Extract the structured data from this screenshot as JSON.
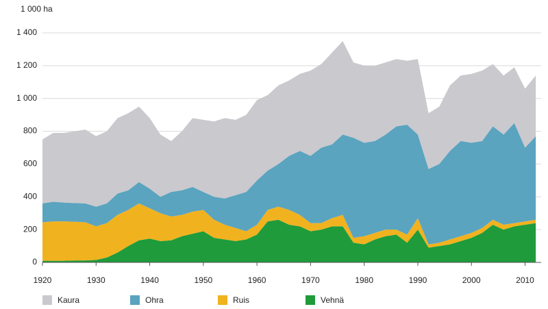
{
  "chart_data": {
    "type": "stacked-area",
    "y_axis_label": "1 000 ha",
    "x": [
      1920,
      1922,
      1924,
      1926,
      1928,
      1930,
      1932,
      1934,
      1936,
      1938,
      1940,
      1942,
      1944,
      1946,
      1948,
      1950,
      1952,
      1954,
      1956,
      1958,
      1960,
      1962,
      1964,
      1966,
      1968,
      1970,
      1972,
      1974,
      1976,
      1978,
      1980,
      1982,
      1984,
      1986,
      1988,
      1990,
      1992,
      1994,
      1996,
      1998,
      2000,
      2002,
      2004,
      2006,
      2008,
      2010,
      2012
    ],
    "series": [
      {
        "name": "Kaura",
        "color": "#c9c9ce",
        "values": [
          390,
          420,
          425,
          438,
          450,
          430,
          440,
          460,
          470,
          460,
          430,
          380,
          310,
          360,
          420,
          440,
          460,
          490,
          460,
          470,
          490,
          460,
          480,
          460,
          470,
          520,
          510,
          560,
          570,
          460,
          470,
          460,
          440,
          410,
          390,
          460,
          340,
          350,
          400,
          400,
          420,
          430,
          380,
          360,
          340,
          360,
          370
        ]
      },
      {
        "name": "Ohra",
        "color": "#5aa4bf",
        "values": [
          115,
          120,
          115,
          114,
          115,
          120,
          120,
          130,
          120,
          130,
          120,
          100,
          150,
          150,
          150,
          110,
          140,
          160,
          200,
          240,
          270,
          240,
          260,
          330,
          390,
          410,
          460,
          450,
          490,
          610,
          570,
          560,
          580,
          630,
          670,
          510,
          460,
          480,
          540,
          580,
          550,
          530,
          570,
          550,
          610,
          450,
          510
        ]
      },
      {
        "name": "Ruis",
        "color": "#f1b21f",
        "values": [
          235,
          240,
          240,
          236,
          233,
          205,
          210,
          230,
          220,
          225,
          185,
          170,
          145,
          130,
          135,
          130,
          110,
          90,
          80,
          50,
          60,
          70,
          80,
          90,
          70,
          50,
          40,
          50,
          70,
          30,
          50,
          40,
          40,
          30,
          50,
          70,
          20,
          20,
          30,
          30,
          30,
          30,
          30,
          30,
          20,
          20,
          20
        ]
      },
      {
        "name": "Vehnä",
        "color": "#1f9b3b",
        "values": [
          10,
          10,
          10,
          12,
          12,
          15,
          30,
          60,
          100,
          135,
          145,
          130,
          135,
          160,
          175,
          190,
          150,
          140,
          130,
          140,
          170,
          250,
          260,
          230,
          220,
          190,
          200,
          220,
          220,
          120,
          110,
          140,
          160,
          170,
          120,
          200,
          90,
          100,
          110,
          130,
          150,
          180,
          230,
          200,
          220,
          230,
          240
        ]
      }
    ],
    "xlim": [
      1920,
      2013
    ],
    "xticks": [
      1920,
      1930,
      1940,
      1950,
      1960,
      1970,
      1980,
      1990,
      2000,
      2010
    ],
    "ylim": [
      0,
      1400
    ],
    "yticks": [
      0,
      200,
      400,
      600,
      800,
      {
        "value": 1000,
        "label": "1 000"
      },
      {
        "value": 1200,
        "label": "1 200"
      },
      {
        "value": 1400,
        "label": "1 400"
      }
    ],
    "grid": true,
    "legend": "bottom"
  }
}
